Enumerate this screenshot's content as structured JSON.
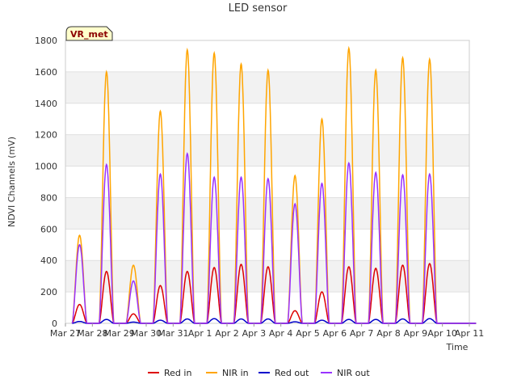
{
  "chart_data": {
    "type": "line",
    "title": "LED sensor",
    "xlabel": "Time",
    "ylabel": "NDVI Channels (mV)",
    "badge": "VR_met",
    "x_ticks": [
      "Mar 27",
      "Mar 28",
      "Mar 29",
      "Mar 30",
      "Mar 31",
      "Apr 1",
      "Apr 2",
      "Apr 3",
      "Apr 4",
      "Apr 5",
      "Apr 6",
      "Apr 7",
      "Apr 8",
      "Apr 9",
      "Apr 10",
      "Apr 11"
    ],
    "y_ticks": [
      0,
      200,
      400,
      600,
      800,
      1000,
      1200,
      1400,
      1600,
      1800
    ],
    "ylim": [
      0,
      1800
    ],
    "xlim_days": [
      0,
      15
    ],
    "grid": true,
    "legend_position": "bottom",
    "day_peaks": {
      "days": [
        "Mar 27",
        "Mar 28",
        "Mar 29",
        "Mar 30",
        "Mar 31",
        "Apr 1",
        "Apr 2",
        "Apr 3",
        "Apr 4",
        "Apr 5",
        "Apr 6",
        "Apr 7",
        "Apr 8",
        "Apr 9",
        "Apr 10"
      ],
      "series": [
        {
          "name": "Red in",
          "color": "#dd0000",
          "values": [
            120,
            330,
            60,
            240,
            330,
            355,
            375,
            360,
            80,
            200,
            360,
            350,
            370,
            380,
            0
          ]
        },
        {
          "name": "NIR in",
          "color": "#ffa500",
          "values": [
            560,
            1600,
            370,
            1350,
            1740,
            1720,
            1650,
            1610,
            940,
            1300,
            1750,
            1610,
            1690,
            1680,
            0
          ]
        },
        {
          "name": "Red out",
          "color": "#0000cc",
          "values": [
            12,
            25,
            8,
            20,
            28,
            30,
            28,
            28,
            10,
            20,
            25,
            25,
            28,
            30,
            0
          ]
        },
        {
          "name": "NIR out",
          "color": "#9933ff",
          "values": [
            500,
            1010,
            270,
            950,
            1080,
            930,
            930,
            920,
            760,
            890,
            1020,
            960,
            945,
            950,
            0
          ]
        }
      ]
    }
  }
}
